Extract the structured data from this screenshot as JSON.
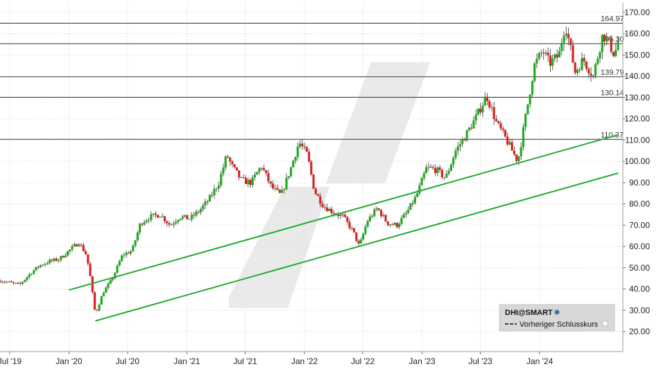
{
  "chart_data": {
    "type": "candlestick",
    "symbol": "DHI@SMART",
    "legend": {
      "title": "DHI@SMART",
      "items": [
        {
          "label": "Vorheriger Schlusskurs",
          "style": "dashed"
        }
      ],
      "position": "bottom-right"
    },
    "y_axis": {
      "min": 15,
      "max": 172,
      "position": "right",
      "ticks": [
        "20.00",
        "30.00",
        "40.00",
        "50.00",
        "60.00",
        "70.00",
        "80.00",
        "90.00",
        "100.00",
        "110.00",
        "120.00",
        "130.00",
        "140.00",
        "150.00",
        "160.00",
        "170.00"
      ]
    },
    "x_axis": {
      "start": "2019-06-01",
      "end": "2024-09-15",
      "ticks": [
        {
          "label": "Jul '19",
          "date": "2019-07-01"
        },
        {
          "label": "Jan '20",
          "date": "2020-01-01"
        },
        {
          "label": "Jul '20",
          "date": "2020-07-01"
        },
        {
          "label": "Jan '21",
          "date": "2021-01-01"
        },
        {
          "label": "Jul '21",
          "date": "2021-07-01"
        },
        {
          "label": "Jan '22",
          "date": "2022-01-01"
        },
        {
          "label": "Jul '22",
          "date": "2022-07-01"
        },
        {
          "label": "Jan '23",
          "date": "2023-01-01"
        },
        {
          "label": "Jul '23",
          "date": "2023-07-01"
        },
        {
          "label": "Jan '24",
          "date": "2024-01-01"
        }
      ]
    },
    "grid": true,
    "colors": {
      "up": "#22aa22",
      "down": "#dd2222",
      "trend": "#22aa33",
      "level": "#333333",
      "grid": "#e4e4e4"
    },
    "horizontal_levels": [
      {
        "value": 164.97,
        "label": "164.97"
      },
      {
        "value": 155.3,
        "label": "155.30"
      },
      {
        "value": 139.79,
        "label": "139.79"
      },
      {
        "value": 130.14,
        "label": "130.14"
      },
      {
        "value": 110.37,
        "label": "110.37"
      }
    ],
    "trend_lines": [
      {
        "start": {
          "date": "2020-01-01",
          "value": 39.5
        },
        "end": {
          "date": "2024-09-01",
          "value": 112.5
        }
      },
      {
        "start": {
          "date": "2020-03-23",
          "value": 25.0
        },
        "end": {
          "date": "2024-09-01",
          "value": 94.5
        }
      }
    ],
    "price_path": [
      [
        "2019-06-01",
        44
      ],
      [
        "2019-07-01",
        43
      ],
      [
        "2019-08-01",
        42
      ],
      [
        "2019-09-01",
        47
      ],
      [
        "2019-10-01",
        51
      ],
      [
        "2019-11-01",
        53
      ],
      [
        "2019-12-01",
        54
      ],
      [
        "2020-01-01",
        58
      ],
      [
        "2020-02-01",
        62
      ],
      [
        "2020-02-24",
        56
      ],
      [
        "2020-03-05",
        48
      ],
      [
        "2020-03-23",
        28
      ],
      [
        "2020-04-15",
        38
      ],
      [
        "2020-05-15",
        45
      ],
      [
        "2020-06-15",
        56
      ],
      [
        "2020-07-15",
        58
      ],
      [
        "2020-08-10",
        71
      ],
      [
        "2020-09-10",
        74
      ],
      [
        "2020-10-10",
        75
      ],
      [
        "2020-11-10",
        70
      ],
      [
        "2020-12-10",
        74
      ],
      [
        "2021-01-10",
        73
      ],
      [
        "2021-02-10",
        77
      ],
      [
        "2021-03-10",
        82
      ],
      [
        "2021-04-10",
        90
      ],
      [
        "2021-05-05",
        103
      ],
      [
        "2021-05-20",
        98
      ],
      [
        "2021-06-20",
        91
      ],
      [
        "2021-07-20",
        90
      ],
      [
        "2021-08-20",
        98
      ],
      [
        "2021-09-20",
        88
      ],
      [
        "2021-10-20",
        84
      ],
      [
        "2021-11-20",
        97
      ],
      [
        "2021-12-15",
        109
      ],
      [
        "2022-01-10",
        103
      ],
      [
        "2022-02-01",
        86
      ],
      [
        "2022-03-01",
        79
      ],
      [
        "2022-04-01",
        76
      ],
      [
        "2022-05-01",
        74
      ],
      [
        "2022-06-01",
        67
      ],
      [
        "2022-06-20",
        60
      ],
      [
        "2022-07-15",
        72
      ],
      [
        "2022-08-15",
        78
      ],
      [
        "2022-09-15",
        71
      ],
      [
        "2022-10-15",
        70
      ],
      [
        "2022-11-15",
        76
      ],
      [
        "2022-12-15",
        84
      ],
      [
        "2023-01-15",
        97
      ],
      [
        "2023-02-15",
        96
      ],
      [
        "2023-03-15",
        92
      ],
      [
        "2023-04-15",
        105
      ],
      [
        "2023-05-15",
        112
      ],
      [
        "2023-06-15",
        120
      ],
      [
        "2023-07-20",
        131
      ],
      [
        "2023-08-20",
        118
      ],
      [
        "2023-09-20",
        110
      ],
      [
        "2023-10-25",
        100
      ],
      [
        "2023-11-15",
        118
      ],
      [
        "2023-12-15",
        145
      ],
      [
        "2024-01-10",
        152
      ],
      [
        "2024-02-01",
        146
      ],
      [
        "2024-03-01",
        150
      ],
      [
        "2024-03-20",
        165
      ],
      [
        "2024-04-20",
        142
      ],
      [
        "2024-05-15",
        148
      ],
      [
        "2024-06-15",
        140
      ],
      [
        "2024-07-15",
        160
      ],
      [
        "2024-08-05",
        155
      ],
      [
        "2024-08-20",
        150
      ],
      [
        "2024-09-01",
        157
      ]
    ]
  }
}
